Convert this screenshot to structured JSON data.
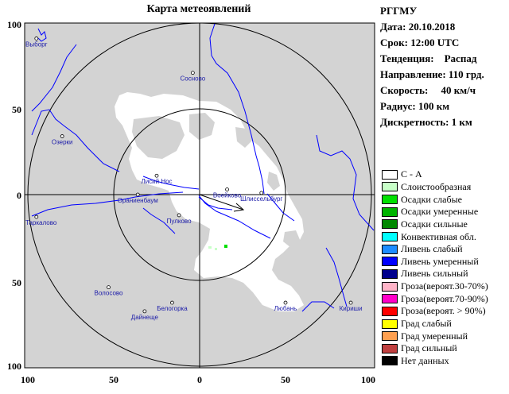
{
  "title": "Карта метеоявлений",
  "axes": {
    "x_ticks": [
      "100",
      "50",
      "0",
      "50",
      "100"
    ],
    "y_ticks": [
      "100",
      "50",
      "0",
      "50",
      "100"
    ]
  },
  "info": {
    "org": "РГГМУ",
    "date": "Дата: 20.10.2018",
    "time": "Срок: 12:00 UTC",
    "trend": "Тенденция:    Распад",
    "direction": "Направление: 110 грд.",
    "speed": "Скорость:     40 км/ч",
    "radius": "Радиус: 100 км",
    "resolution": "Дискретность: 1 км"
  },
  "legend": [
    {
      "label": "С - А",
      "color": "#ffffff"
    },
    {
      "label": "Слоистообразная",
      "color": "#c8ffc8"
    },
    {
      "label": "Осадки слабые",
      "color": "#00e000"
    },
    {
      "label": "Осадки умеренные",
      "color": "#00b400"
    },
    {
      "label": "Осадки сильные",
      "color": "#008800"
    },
    {
      "label": "Конвективная обл.",
      "color": "#00ffff"
    },
    {
      "label": "Ливень слабый",
      "color": "#1e8cff"
    },
    {
      "label": "Ливень умеренный",
      "color": "#0000ff"
    },
    {
      "label": "Ливень сильный",
      "color": "#00008c"
    },
    {
      "label": "Гроза(вероят.30-70%)",
      "color": "#ffb4c8"
    },
    {
      "label": "Гроза(вероят.70-90%)",
      "color": "#ff00c8"
    },
    {
      "label": "Гроза(вероят. > 90%)",
      "color": "#ff0000"
    },
    {
      "label": "Град слабый",
      "color": "#ffff00"
    },
    {
      "label": "Град умеренный",
      "color": "#ffa050"
    },
    {
      "label": "Град сильный",
      "color": "#c04040"
    },
    {
      "label": "Нет данных",
      "color": "#000000"
    }
  ],
  "towns": [
    {
      "name": "Выборг",
      "x": -95,
      "y": 91
    },
    {
      "name": "Сосново",
      "x": -4,
      "y": 71
    },
    {
      "name": "Озерки",
      "x": -80,
      "y": 34
    },
    {
      "name": "Лисий Нос",
      "x": -25,
      "y": 11
    },
    {
      "name": "Ораниенбаум",
      "x": -36,
      "y": 0
    },
    {
      "name": "Пулково",
      "x": -12,
      "y": -12
    },
    {
      "name": "Воейково",
      "x": 16,
      "y": 3
    },
    {
      "name": "Шлиссельбург",
      "x": 36,
      "y": 1
    },
    {
      "name": "Ст Таркалово",
      "x": -95,
      "y": -13
    },
    {
      "name": "Волосово",
      "x": -53,
      "y": -54
    },
    {
      "name": "Белогорка",
      "x": -16,
      "y": -63
    },
    {
      "name": "Дайнеще",
      "x": -32,
      "y": -68
    },
    {
      "name": "Любань",
      "x": 50,
      "y": -63
    },
    {
      "name": "Кириши",
      "x": 88,
      "y": -63
    }
  ],
  "colors": {
    "outside": "#d0d0d0",
    "map_bg": "#d3d3d3",
    "clear": "#ffffff",
    "river": "#0000ff",
    "town": "#1a1aa8"
  }
}
